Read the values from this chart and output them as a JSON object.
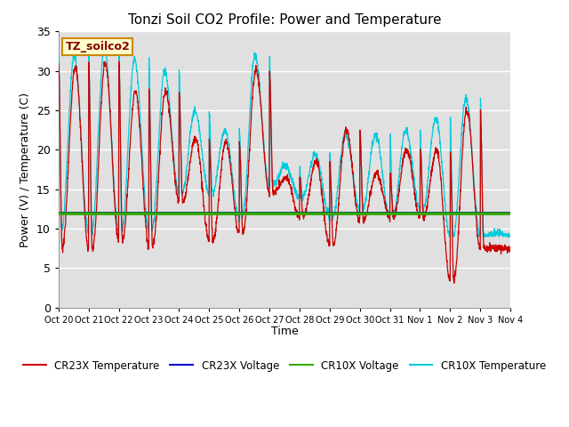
{
  "title": "Tonzi Soil CO2 Profile: Power and Temperature",
  "ylabel": "Power (V) / Temperature (C)",
  "xlabel": "Time",
  "ylim": [
    0,
    35
  ],
  "background_color": "#e0e0e0",
  "grid_color": "#ffffff",
  "annotation_text": "TZ_soilco2",
  "annotation_bg": "#ffffcc",
  "annotation_edge": "#cc8800",
  "cr23x_temp_color": "#cc0000",
  "cr23x_volt_color": "#0000cc",
  "cr10x_volt_color": "#33aa00",
  "cr10x_temp_color": "#00ccdd",
  "cr23x_volt_value": 12.0,
  "cr10x_volt_value": 11.9,
  "yticks": [
    0,
    5,
    10,
    15,
    20,
    25,
    30,
    35
  ],
  "tick_labels": [
    "Oct 20",
    "Oct 21",
    "Oct 22",
    "Oct 23",
    "Oct 24",
    "Oct 25",
    "Oct 26",
    "Oct 27",
    "Oct 28",
    "Oct 29",
    "Oct 30",
    "Oct 31",
    "Nov 1",
    "Nov 2",
    "Nov 3",
    "Nov 4"
  ]
}
